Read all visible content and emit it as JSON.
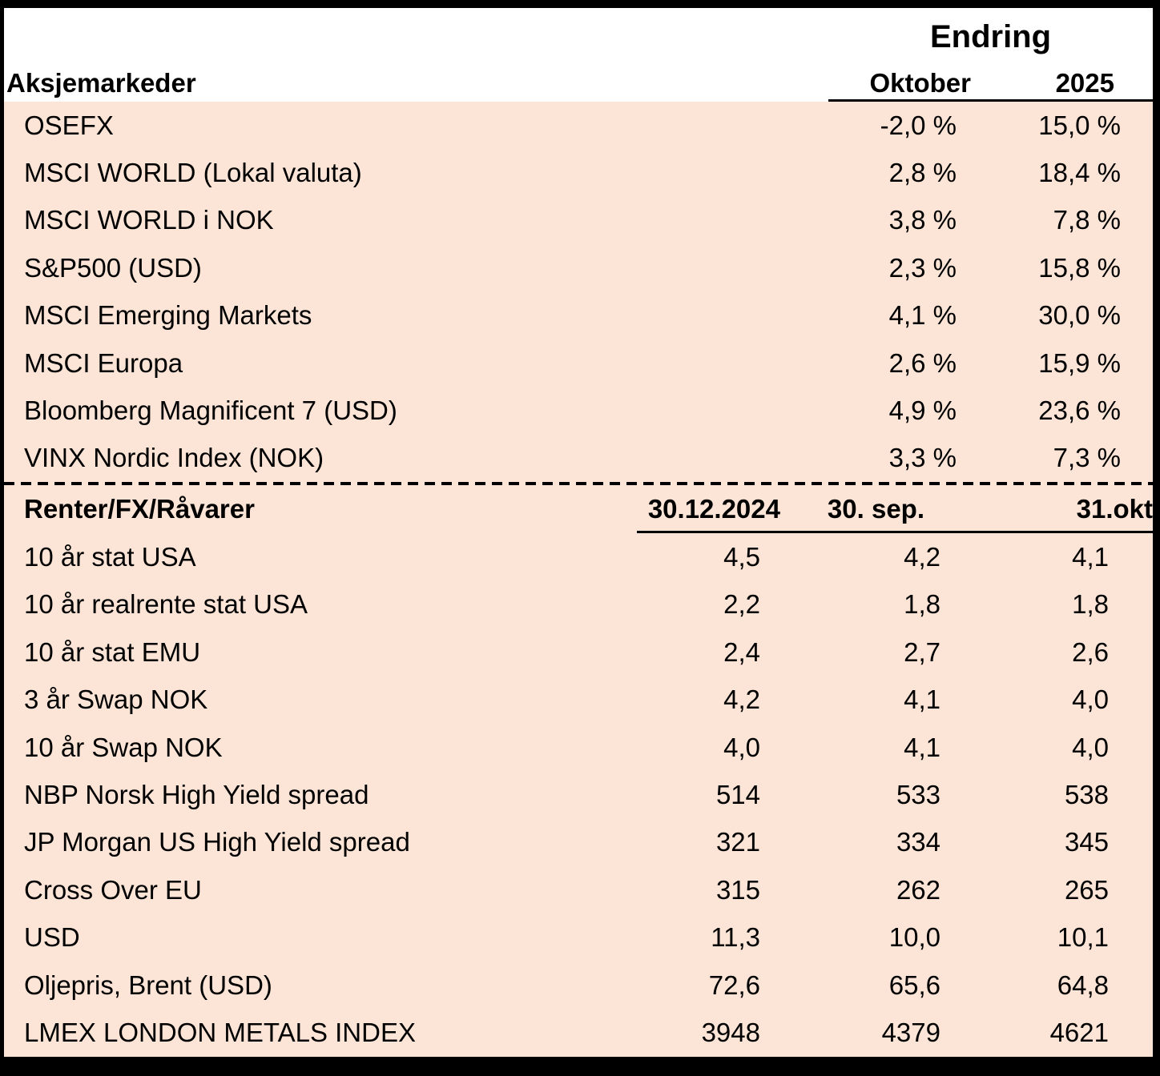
{
  "colors": {
    "row_background": "#fce4d6",
    "header_background": "#ffffff",
    "border": "#000000",
    "text": "#000000"
  },
  "chart_data": [
    {
      "type": "table",
      "section_title": "Aksjemarkeder",
      "group_header": "Endring",
      "columns": [
        "Oktober",
        "2025"
      ],
      "rows": [
        [
          "OSEFX",
          "-2,0 %",
          "15,0 %"
        ],
        [
          "MSCI WORLD (Lokal valuta)",
          "2,8 %",
          "18,4 %"
        ],
        [
          "MSCI WORLD i NOK",
          "3,8 %",
          "7,8 %"
        ],
        [
          "S&P500 (USD)",
          "2,3 %",
          "15,8 %"
        ],
        [
          "MSCI Emerging Markets",
          "4,1 %",
          "30,0 %"
        ],
        [
          "MSCI Europa",
          "2,6 %",
          "15,9 %"
        ],
        [
          "Bloomberg Magnificent 7 (USD)",
          "4,9 %",
          "23,6 %"
        ],
        [
          "VINX Nordic Index (NOK)",
          "3,3 %",
          "7,3 %"
        ]
      ]
    },
    {
      "type": "table",
      "section_title": "Renter/FX/Råvarer",
      "columns": [
        "30.12.2024",
        "30. sep.",
        "31.okt"
      ],
      "rows": [
        [
          "10 år stat USA",
          "4,5",
          "4,2",
          "4,1"
        ],
        [
          "10 år realrente stat USA",
          "2,2",
          "1,8",
          "1,8"
        ],
        [
          "10 år stat EMU",
          "2,4",
          "2,7",
          "2,6"
        ],
        [
          "3 år Swap NOK",
          "4,2",
          "4,1",
          "4,0"
        ],
        [
          "10 år Swap NOK",
          "4,0",
          "4,1",
          "4,0"
        ],
        [
          "NBP Norsk High Yield spread",
          "514",
          "533",
          "538"
        ],
        [
          "JP Morgan US High Yield spread",
          "321",
          "334",
          "345"
        ],
        [
          "Cross Over EU",
          "315",
          "262",
          "265"
        ],
        [
          "USD",
          "11,3",
          "10,0",
          "10,1"
        ],
        [
          "Oljepris, Brent (USD)",
          "72,6",
          "65,6",
          "64,8"
        ],
        [
          "LMEX LONDON METALS INDEX",
          "3948",
          "4379",
          "4621"
        ]
      ]
    }
  ]
}
